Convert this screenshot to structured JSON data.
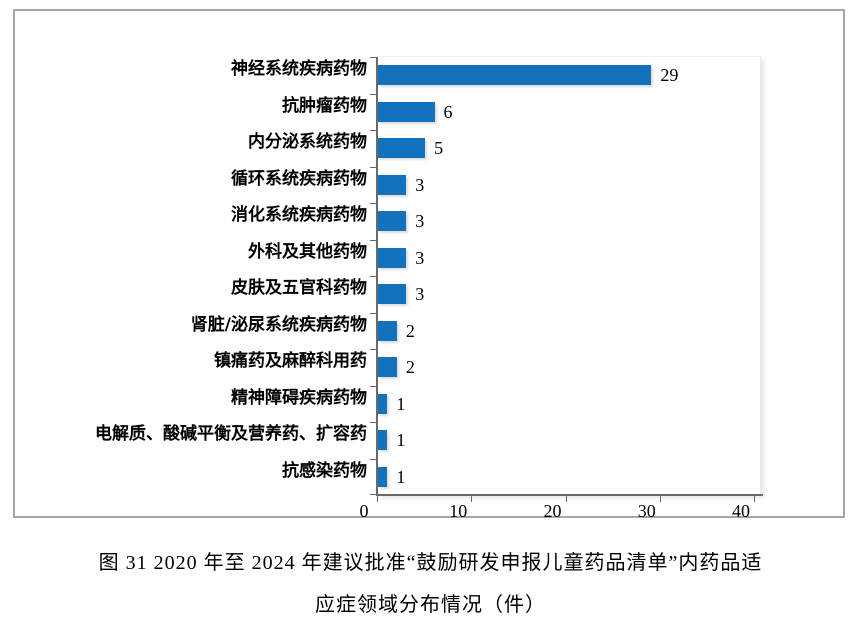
{
  "figure": {
    "caption_line1": "图 31  2020 年至 2024 年建议批准“鼓励研发申报儿童药品清单”内药品适",
    "caption_line2": "应症领域分布情况（件）"
  },
  "chart_data": {
    "type": "bar",
    "orientation": "horizontal",
    "title": "",
    "xlabel": "",
    "ylabel": "",
    "categories": [
      "神经系统疾病药物",
      "抗肿瘤药物",
      "内分泌系统药物",
      "循环系统疾病药物",
      "消化系统疾病药物",
      "外科及其他药物",
      "皮肤及五官科药物",
      "肾脏/泌尿系统疾病药物",
      "镇痛药及麻醉科用药",
      "精神障碍疾病药物",
      "电解质、酸碱平衡及营养药、扩容药",
      "抗感染药物"
    ],
    "values": [
      29,
      6,
      5,
      3,
      3,
      3,
      3,
      2,
      2,
      1,
      1,
      1
    ],
    "data_labels": [
      "29",
      "6",
      "5",
      "3",
      "3",
      "3",
      "3",
      "2",
      "2",
      "1",
      "1",
      "1"
    ],
    "x_ticks": [
      "0",
      "10",
      "20",
      "30",
      "40"
    ],
    "x_tick_values": [
      0,
      10,
      20,
      30,
      40
    ],
    "xlim": [
      0,
      40
    ],
    "grid": false,
    "legend": false,
    "bar_color": "#1272be",
    "axis_color": "#6a6a6a",
    "frame_color": "#a6a6a6"
  }
}
